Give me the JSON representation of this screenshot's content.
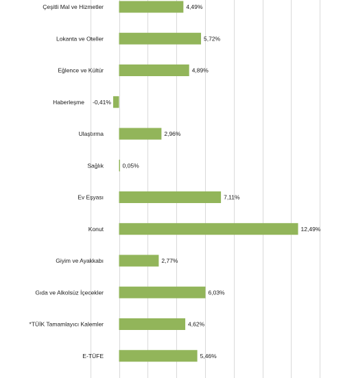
{
  "chart_data": {
    "type": "bar",
    "orientation": "horizontal",
    "categories": [
      "Çeşitli Mal ve Hizmetler",
      "Lokanta ve Oteller",
      "Eğlence ve Kültür",
      "Haberleşme",
      "Ulaştırma",
      "Sağlık",
      "Ev Eşyası",
      "Konut",
      "Giyim ve Ayakkabı",
      "Gıda ve Alkolsüz İçecekler",
      "*TÜİK Tamamlayıcı Kalemler",
      "E-TÜFE"
    ],
    "values": [
      4.49,
      5.72,
      4.89,
      -0.41,
      2.96,
      0.05,
      7.11,
      12.49,
      2.77,
      6.03,
      4.62,
      5.46
    ],
    "data_labels": [
      "4,49%",
      "5,72%",
      "4,89%",
      "-0,41%",
      "2,96%",
      "0,05%",
      "7,11%",
      "12,49%",
      "2,77%",
      "6,03%",
      "4,62%",
      "5,46%"
    ],
    "xlim": [
      -2,
      14
    ],
    "grid": "vertical",
    "legend": "none",
    "bar_color": "#92b55a",
    "gridline_color": "#d9d9d9"
  }
}
